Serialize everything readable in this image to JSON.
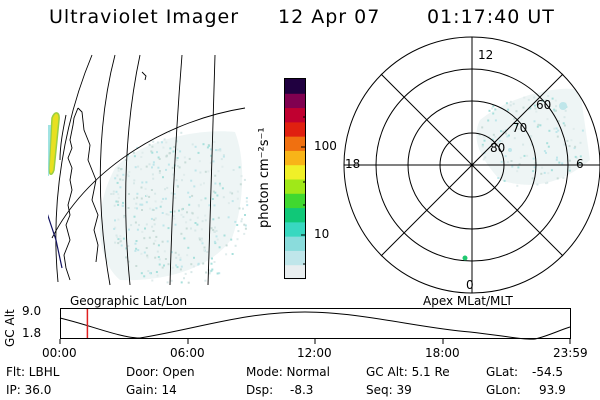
{
  "header": {
    "title": "Ultraviolet Imager",
    "date": "12 Apr 07",
    "time": "01:17:40 UT"
  },
  "colorbar": {
    "label": "photon cm⁻²s⁻¹",
    "ticks": [
      "100",
      "10"
    ],
    "colors": [
      "#e8eef0",
      "#bfe6ea",
      "#8adcdc",
      "#38d8c0",
      "#10c878",
      "#40d830",
      "#a0e818",
      "#f0f028",
      "#f8b418",
      "#f07010",
      "#e02010",
      "#c00030",
      "#800050",
      "#200040"
    ]
  },
  "polar": {
    "mlt_labels": [
      "12",
      "18",
      "6",
      "0"
    ],
    "mlat_labels": [
      "60",
      "70",
      "80"
    ]
  },
  "map_labels": {
    "left": "Geographic Lat/Lon",
    "right": "Apex MLat/MLT"
  },
  "alt_plot": {
    "ylabel": "GC Alt",
    "yticks": [
      "9.0",
      "1.8"
    ],
    "xticks": [
      "00:00",
      "06:00",
      "12:00",
      "18:00",
      "23:59"
    ],
    "current_marker_hour": 1.29
  },
  "status": {
    "flt_label": "Flt: LBHL",
    "ip_label": "IP: 36.0",
    "door_label": "Door: Open",
    "gain_label": "Gain: 14",
    "mode_label": "Mode: Normal",
    "dsp_label": "Dsp:",
    "dsp_value": "-8.3",
    "gcalt_label": "GC Alt: 5.1 Re",
    "seq_label": "Seq: 39",
    "glat_label": "GLat:",
    "glat_value": "-54.5",
    "glon_label": "GLon:",
    "glon_value": "93.9"
  }
}
